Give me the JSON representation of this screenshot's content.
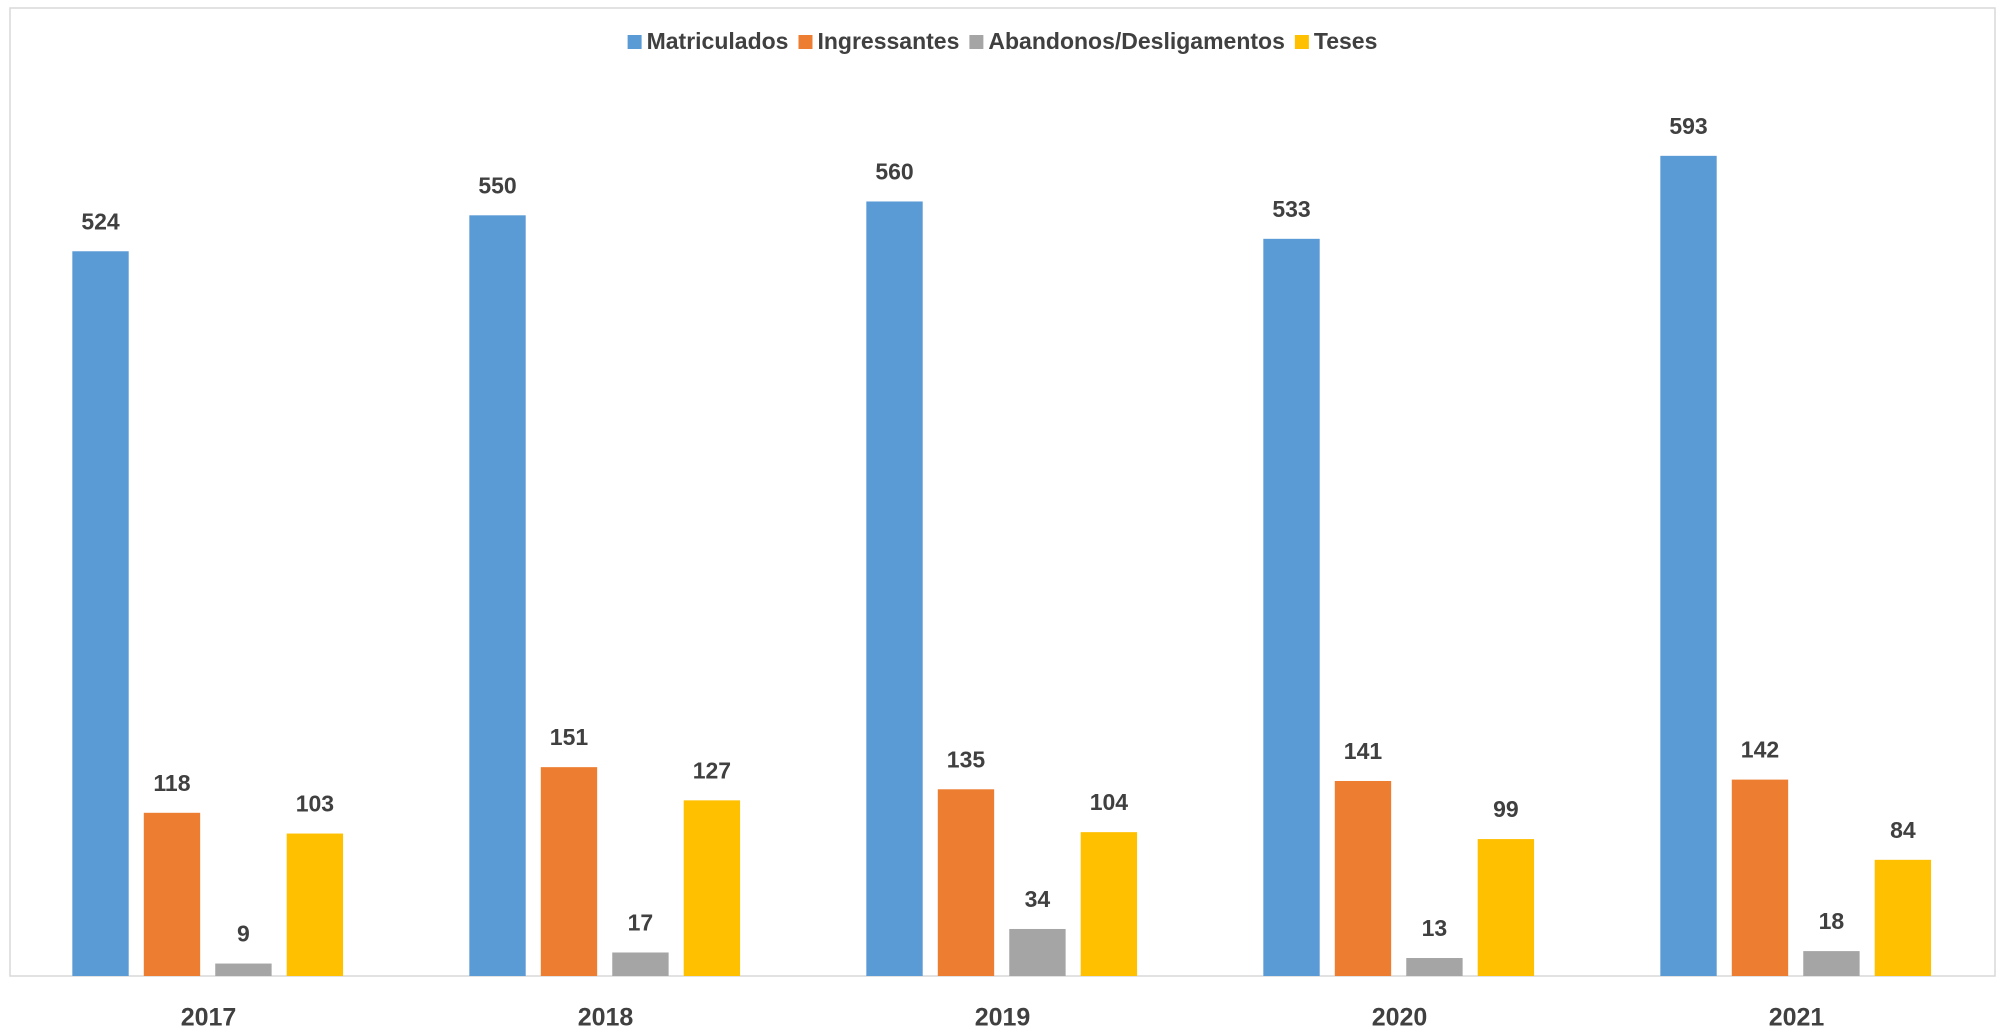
{
  "chart_data": {
    "type": "bar",
    "categories": [
      "2017",
      "2018",
      "2019",
      "2020",
      "2021"
    ],
    "series": [
      {
        "name": "Matriculados",
        "color": "#5b9bd5",
        "values": [
          524,
          550,
          560,
          533,
          593
        ]
      },
      {
        "name": "Ingressantes",
        "color": "#ed7d31",
        "values": [
          118,
          151,
          135,
          141,
          142
        ]
      },
      {
        "name": "Abandonos/Desligamentos",
        "color": "#a5a5a5",
        "values": [
          9,
          17,
          34,
          13,
          18
        ]
      },
      {
        "name": "Teses",
        "color": "#ffc000",
        "values": [
          103,
          127,
          104,
          99,
          84
        ]
      }
    ],
    "ylim": [
      0,
      650
    ],
    "legend": "top"
  }
}
